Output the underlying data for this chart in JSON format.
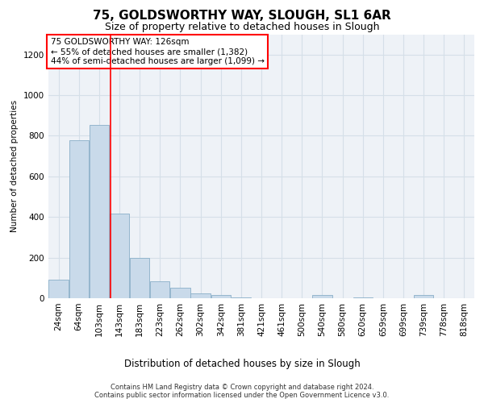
{
  "title": "75, GOLDSWORTHY WAY, SLOUGH, SL1 6AR",
  "subtitle": "Size of property relative to detached houses in Slough",
  "xlabel": "Distribution of detached houses by size in Slough",
  "ylabel": "Number of detached properties",
  "footnote1": "Contains HM Land Registry data © Crown copyright and database right 2024.",
  "footnote2": "Contains public sector information licensed under the Open Government Licence v3.0.",
  "annotation_line1": "75 GOLDSWORTHY WAY: 126sqm",
  "annotation_line2": "← 55% of detached houses are smaller (1,382)",
  "annotation_line3": "44% of semi-detached houses are larger (1,099) →",
  "bar_labels": [
    "24sqm",
    "64sqm",
    "103sqm",
    "143sqm",
    "183sqm",
    "223sqm",
    "262sqm",
    "302sqm",
    "342sqm",
    "381sqm",
    "421sqm",
    "461sqm",
    "500sqm",
    "540sqm",
    "580sqm",
    "620sqm",
    "659sqm",
    "699sqm",
    "739sqm",
    "778sqm",
    "818sqm"
  ],
  "bar_values": [
    90,
    780,
    855,
    415,
    200,
    85,
    50,
    25,
    15,
    5,
    0,
    0,
    0,
    15,
    0,
    5,
    0,
    0,
    15,
    0,
    0
  ],
  "bar_color": "#c9daea",
  "bar_edge_color": "#89afc8",
  "grid_color": "#d5dfe8",
  "background_color": "#eef2f7",
  "red_line_x": 2.58,
  "ylim": [
    0,
    1300
  ],
  "yticks": [
    0,
    200,
    400,
    600,
    800,
    1000,
    1200
  ],
  "title_fontsize": 11,
  "subtitle_fontsize": 9,
  "xlabel_fontsize": 8.5,
  "ylabel_fontsize": 7.5,
  "tick_fontsize": 7.5,
  "annot_fontsize": 7.5
}
